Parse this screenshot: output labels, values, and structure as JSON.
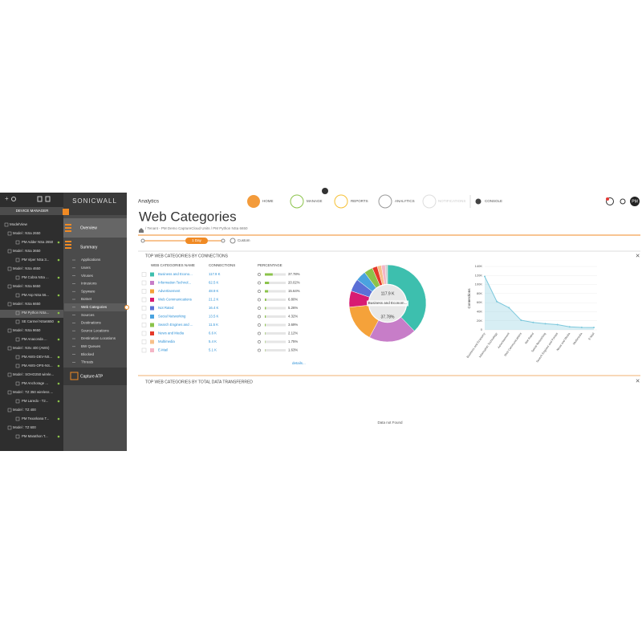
{
  "device_manager": {
    "title": "DEVICE MANAGER",
    "root": "ModelView",
    "models": [
      {
        "name": "Model : NSa 2650",
        "units": [
          "PM Adder NSa 2650"
        ]
      },
      {
        "name": "Model : NSa 3650",
        "units": [
          "PM Viper NSa 3..."
        ]
      },
      {
        "name": "Model : NSa 4650",
        "units": [
          "PM Cobra NSa ..."
        ]
      },
      {
        "name": "Model : NSa 5650",
        "units": [
          "PM Asp NSa 56..."
        ]
      },
      {
        "name": "Model : NSa 6650",
        "units": [
          "PM Python NSa...",
          "SE Carmel NSa6650"
        ]
      },
      {
        "name": "Model : NSa 9650",
        "units": [
          "PM Anaconda ..."
        ]
      },
      {
        "name": "Model : NSv 400 (AWS)",
        "units": [
          "PM AWS-DEV-NS...",
          "PM AWS-OPS-NS..."
        ]
      },
      {
        "name": "Model : SOHO250 wirele...",
        "units": [
          "PM Anchorage ..."
        ]
      },
      {
        "name": "Model : TZ 350 wireless ...",
        "units": [
          "PM Laredo - T2..."
        ]
      },
      {
        "name": "Model : TZ 400",
        "units": [
          "PM Texarkana T..."
        ]
      },
      {
        "name": "Model : TZ 600",
        "units": [
          "PM Marathon T..."
        ]
      }
    ]
  },
  "nav": {
    "logo": "SONICWALL",
    "overview": "Overview",
    "summary": "Summary",
    "items": [
      "Applications",
      "Users",
      "Viruses",
      "Intrusions",
      "Spyware",
      "Botnet",
      "Web Categories",
      "Sources",
      "Destinations",
      "Source Locations",
      "Destination Locations",
      "BW Queues",
      "Blocked",
      "Threats"
    ],
    "capture": "Capture ATP"
  },
  "header": {
    "app": "Analytics",
    "tabs": [
      "HOME",
      "MANAGE",
      "REPORTS",
      "ANALYTICS",
      "NOTIFICATIONS",
      "CONSOLE"
    ],
    "avatar": "PM"
  },
  "page": {
    "title": "Web Categories",
    "breadcrumb": "/ Tenant - PM Demo CaptureCloud Units / PM Python NSa 6650",
    "range": "1 Day",
    "custom": "Custom"
  },
  "panel_connections": {
    "title": "TOP WEB CATEGORIES BY CONNECTIONS",
    "columns": [
      "WEB CATEGORIES NAME",
      "CONNECTIONS",
      "PERCENTAGE"
    ],
    "rows": [
      "Business and Econo...",
      "Information Technol...",
      "Advertisement",
      "Web Communications",
      "Not Rated",
      "Social Networking",
      "Search Engines and ...",
      "News and Media",
      "Multimedia",
      "E-Mail"
    ],
    "details": "details...",
    "pie_center_name": "Business and Econom..."
  },
  "panel_data": {
    "title": "TOP WEB CATEGORIES BY TOTAL DATA TRANSFERRED",
    "empty": "Data not Found"
  },
  "chart_data": [
    {
      "type": "pie",
      "categories": [
        "Business and Economy",
        "Information Technology",
        "Advertisement",
        "Web Communications",
        "Not Rated",
        "Social Networking",
        "Search Engines and Portals",
        "News and Media",
        "Multimedia",
        "E-Mail"
      ],
      "values": [
        37.78,
        20.02,
        15.64,
        6.8,
        5.26,
        4.32,
        3.69,
        2.12,
        1.75,
        1.63
      ],
      "value_labels": [
        "37.78%",
        "20.02%",
        "15.64%",
        "6.80%",
        "5.26%",
        "4.32%",
        "3.69%",
        "2.12%",
        "1.75%",
        "1.63%"
      ],
      "colors": [
        "#3dbfae",
        "#c77dc8",
        "#f5a23a",
        "#d81b72",
        "#5b6fd6",
        "#4aa3df",
        "#8bc34a",
        "#e53a2a",
        "#f7c08a",
        "#f4b6c6"
      ]
    },
    {
      "type": "area",
      "y_label": "Connections",
      "categories": [
        "Business and Economy",
        "Information Technology",
        "Advertisement",
        "Web Communications",
        "Not Rated",
        "Social Networking",
        "Search Engines and Portals",
        "News and Media",
        "Multimedia",
        "E-Mail"
      ],
      "values": [
        117900,
        62500,
        48900,
        21200,
        16400,
        13500,
        11500,
        6600,
        5400,
        5100
      ],
      "value_labels": [
        "117.9 K",
        "62.5 K",
        "48.9 K",
        "21.2 K",
        "16.4 K",
        "13.5 K",
        "11.5 K",
        "6.6 K",
        "5.4 K",
        "5.1 K"
      ],
      "color": "#7cc8dc",
      "ylim": [
        0,
        140000
      ],
      "yticks": [
        0,
        {
          "value": 20000,
          "label": "20K"
        },
        {
          "value": 40000,
          "label": "40K"
        },
        {
          "value": 60000,
          "label": "60K"
        },
        {
          "value": 80000,
          "label": "80K"
        },
        {
          "value": 100000,
          "label": "100K"
        },
        {
          "value": 120000,
          "label": "120K"
        },
        {
          "value": 140000,
          "label": "140K"
        }
      ]
    }
  ]
}
